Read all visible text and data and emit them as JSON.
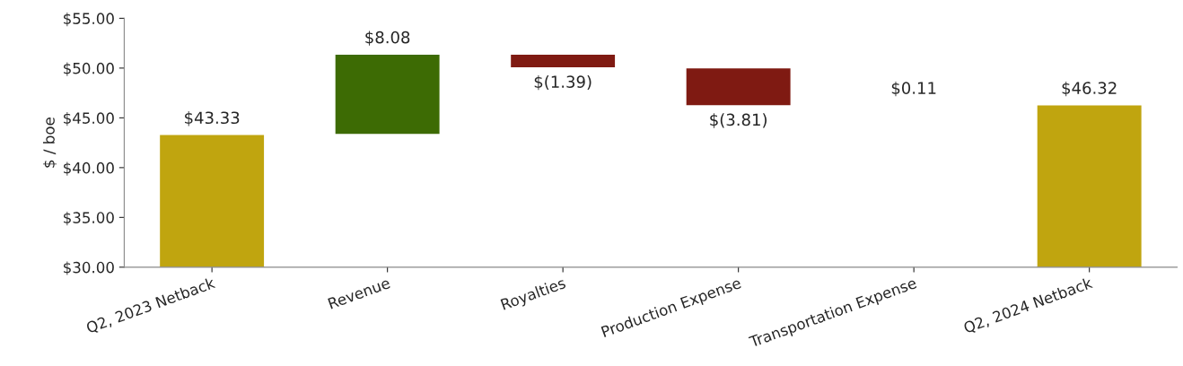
{
  "chart_data": {
    "type": "bar",
    "ylabel": "$ / boe",
    "categories": [
      "Q2, 2023 Netback",
      "Revenue",
      "Royalties",
      "Production Expense",
      "Transportation Expense",
      "Q2, 2024 Netback"
    ],
    "values": [
      43.33,
      8.08,
      -1.39,
      -3.81,
      0.11,
      46.32
    ],
    "base": [
      0,
      43.33,
      51.41,
      50.02,
      46.21,
      0
    ],
    "colors": [
      "#c0a50f",
      "#3d6b04",
      "#7f1a12",
      "#7f1a12",
      "#3d6b04",
      "#c0a50f"
    ],
    "value_labels": [
      "$43.33",
      "$8.08",
      "$(1.39)",
      "$(3.81)",
      "$0.11",
      "$46.32"
    ],
    "ylim": [
      30,
      55
    ],
    "yticks": [
      {
        "value": 30,
        "label": "$30.00"
      },
      {
        "value": 35,
        "label": "$35.00"
      },
      {
        "value": 40,
        "label": "$40.00"
      },
      {
        "value": 45,
        "label": "$45.00"
      },
      {
        "value": 50,
        "label": "$50.00"
      },
      {
        "value": 55,
        "label": "$55.00"
      }
    ],
    "grid": false,
    "legend": false
  }
}
